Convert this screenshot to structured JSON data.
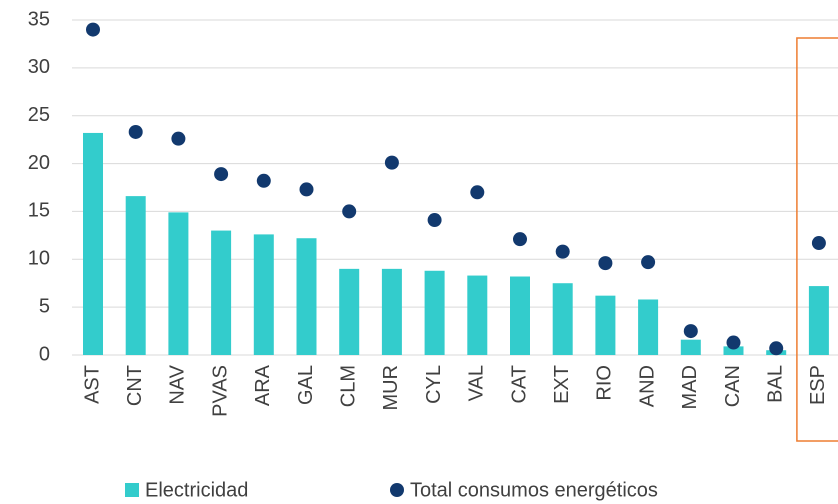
{
  "chart_data": {
    "type": "bar",
    "categories": [
      "AST",
      "CNT",
      "NAV",
      "PVAS",
      "ARA",
      "GAL",
      "CLM",
      "MUR",
      "CYL",
      "VAL",
      "CAT",
      "EXT",
      "RIO",
      "AND",
      "MAD",
      "CAN",
      "BAL",
      "ESP"
    ],
    "series": [
      {
        "name": "Electricidad",
        "color": "#33cccc",
        "type": "bar",
        "values": [
          23.2,
          16.6,
          14.9,
          13.0,
          12.6,
          12.2,
          9.0,
          9.0,
          8.8,
          8.3,
          8.2,
          7.5,
          6.2,
          5.8,
          1.6,
          0.9,
          0.5,
          7.2
        ]
      },
      {
        "name": "Total consumos energéticos",
        "color": "#12396e",
        "type": "scatter",
        "values": [
          34.0,
          23.3,
          22.6,
          18.9,
          18.2,
          17.3,
          15.0,
          20.1,
          14.1,
          17.0,
          12.1,
          10.8,
          9.6,
          9.7,
          2.5,
          1.3,
          0.7,
          11.7
        ]
      }
    ],
    "ylim": [
      0,
      35
    ],
    "yticks": [
      0,
      5,
      10,
      15,
      20,
      25,
      30,
      35
    ],
    "grid": true,
    "legend": "bottom"
  }
}
